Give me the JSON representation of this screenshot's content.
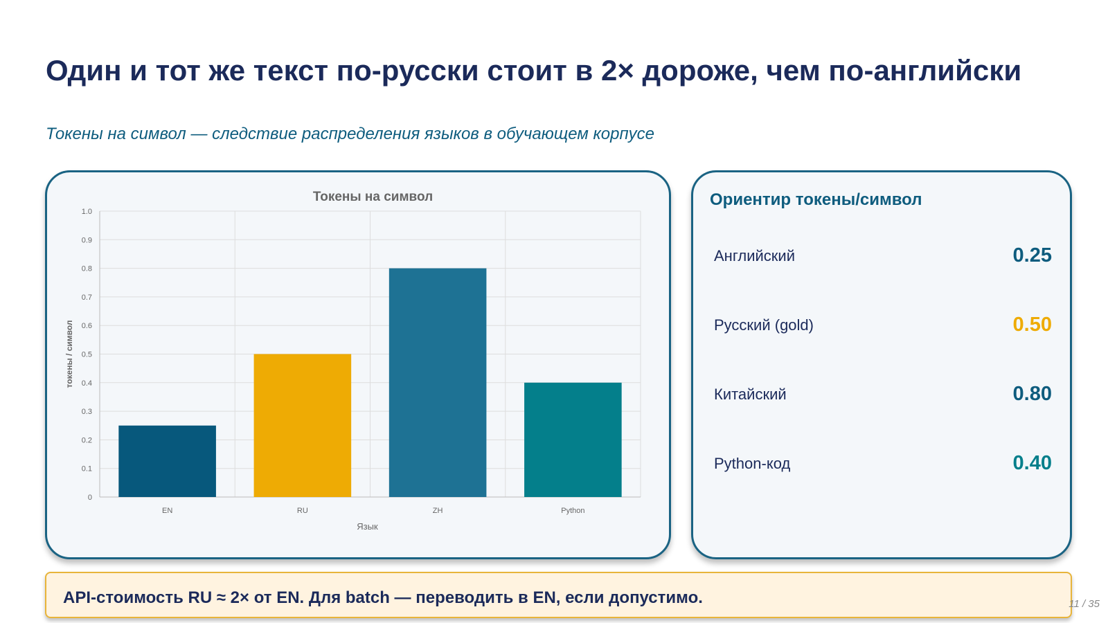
{
  "title": "Один и тот же текст по-русски стоит в 2× дороже, чем по-английски",
  "subtitle": "Токены на символ — следствие распределения языков в обучающем корпусе",
  "chart_data": {
    "type": "bar",
    "title": "Токены на символ",
    "xlabel": "Язык",
    "ylabel": "токены / символ",
    "categories": [
      "EN",
      "RU",
      "ZH",
      "Python"
    ],
    "values": [
      0.25,
      0.5,
      0.8,
      0.4
    ],
    "colors": [
      "#07587c",
      "#eeab04",
      "#1e7294",
      "#047f8b"
    ],
    "ylim": [
      0,
      1.0
    ],
    "yticks": [
      "0",
      "0.1",
      "0.2",
      "0.3",
      "0.4",
      "0.5",
      "0.6",
      "0.7",
      "0.8",
      "0.9",
      "1.0"
    ],
    "grid": true,
    "legend": "none"
  },
  "reference": {
    "title": "Ориентир токены/символ",
    "rows": [
      {
        "label": "Английский",
        "value": "0.25",
        "color": "#0e5c7e"
      },
      {
        "label": "Русский (gold)",
        "value": "0.50",
        "color": "#eeab04"
      },
      {
        "label": "Китайский",
        "value": "0.80",
        "color": "#0e5c7e"
      },
      {
        "label": "Python-код",
        "value": "0.40",
        "color": "#047f8b"
      }
    ]
  },
  "note": "API-стоимость RU ≈ 2× от EN. Для batch — переводить в EN, если допустимо.",
  "page": "11 / 35"
}
